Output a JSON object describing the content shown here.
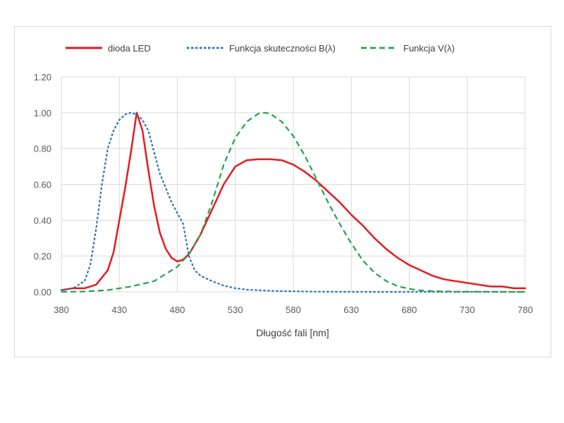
{
  "chart_data": {
    "type": "line",
    "title": "",
    "xlabel": "Długość fali [nm]",
    "ylabel": "",
    "xlim": [
      380,
      780
    ],
    "ylim": [
      0,
      1.2
    ],
    "x_ticks": [
      "380",
      "430",
      "480",
      "530",
      "580",
      "630",
      "680",
      "730",
      "780"
    ],
    "y_ticks": [
      "0.00",
      "0.20",
      "0.40",
      "0.60",
      "0.80",
      "1.00",
      "1.20"
    ],
    "grid": true,
    "legend_position": "top",
    "series": [
      {
        "name": "dioda LED",
        "color": "#e8191f",
        "style": "solid",
        "points": [
          [
            380,
            0.01
          ],
          [
            390,
            0.02
          ],
          [
            400,
            0.02
          ],
          [
            410,
            0.04
          ],
          [
            420,
            0.12
          ],
          [
            425,
            0.22
          ],
          [
            430,
            0.4
          ],
          [
            435,
            0.58
          ],
          [
            440,
            0.78
          ],
          [
            445,
            1.0
          ],
          [
            450,
            0.9
          ],
          [
            455,
            0.68
          ],
          [
            460,
            0.48
          ],
          [
            465,
            0.33
          ],
          [
            470,
            0.24
          ],
          [
            475,
            0.19
          ],
          [
            480,
            0.17
          ],
          [
            485,
            0.18
          ],
          [
            490,
            0.21
          ],
          [
            500,
            0.32
          ],
          [
            510,
            0.46
          ],
          [
            520,
            0.6
          ],
          [
            530,
            0.7
          ],
          [
            540,
            0.735
          ],
          [
            550,
            0.74
          ],
          [
            560,
            0.74
          ],
          [
            570,
            0.735
          ],
          [
            580,
            0.71
          ],
          [
            590,
            0.67
          ],
          [
            600,
            0.62
          ],
          [
            610,
            0.56
          ],
          [
            620,
            0.5
          ],
          [
            630,
            0.43
          ],
          [
            640,
            0.37
          ],
          [
            650,
            0.3
          ],
          [
            660,
            0.24
          ],
          [
            670,
            0.19
          ],
          [
            680,
            0.15
          ],
          [
            690,
            0.12
          ],
          [
            700,
            0.09
          ],
          [
            710,
            0.07
          ],
          [
            720,
            0.06
          ],
          [
            730,
            0.05
          ],
          [
            740,
            0.04
          ],
          [
            750,
            0.03
          ],
          [
            760,
            0.03
          ],
          [
            770,
            0.02
          ],
          [
            780,
            0.02
          ]
        ]
      },
      {
        "name": "Funkcja skuteczności B(λ)",
        "color": "#2e75b6",
        "style": "dotted",
        "points": [
          [
            380,
            0.01
          ],
          [
            390,
            0.02
          ],
          [
            400,
            0.06
          ],
          [
            405,
            0.15
          ],
          [
            410,
            0.35
          ],
          [
            415,
            0.6
          ],
          [
            420,
            0.8
          ],
          [
            425,
            0.9
          ],
          [
            430,
            0.96
          ],
          [
            435,
            0.99
          ],
          [
            440,
            1.0
          ],
          [
            445,
            0.99
          ],
          [
            450,
            0.96
          ],
          [
            455,
            0.9
          ],
          [
            460,
            0.78
          ],
          [
            465,
            0.66
          ],
          [
            470,
            0.58
          ],
          [
            475,
            0.5
          ],
          [
            480,
            0.44
          ],
          [
            485,
            0.38
          ],
          [
            490,
            0.2
          ],
          [
            495,
            0.12
          ],
          [
            500,
            0.09
          ],
          [
            510,
            0.06
          ],
          [
            520,
            0.035
          ],
          [
            530,
            0.02
          ],
          [
            540,
            0.012
          ],
          [
            560,
            0.006
          ],
          [
            580,
            0.003
          ],
          [
            600,
            0.001
          ],
          [
            650,
            0.0
          ],
          [
            780,
            0.0
          ]
        ]
      },
      {
        "name": "Funkcja V(λ)",
        "color": "#21a54a",
        "style": "dashed",
        "points": [
          [
            380,
            0.0
          ],
          [
            400,
            0.002
          ],
          [
            420,
            0.01
          ],
          [
            440,
            0.03
          ],
          [
            460,
            0.06
          ],
          [
            480,
            0.14
          ],
          [
            490,
            0.21
          ],
          [
            500,
            0.32
          ],
          [
            510,
            0.5
          ],
          [
            520,
            0.71
          ],
          [
            530,
            0.86
          ],
          [
            540,
            0.95
          ],
          [
            550,
            0.995
          ],
          [
            555,
            1.0
          ],
          [
            560,
            0.995
          ],
          [
            570,
            0.95
          ],
          [
            580,
            0.87
          ],
          [
            590,
            0.76
          ],
          [
            600,
            0.63
          ],
          [
            610,
            0.5
          ],
          [
            620,
            0.38
          ],
          [
            630,
            0.27
          ],
          [
            640,
            0.175
          ],
          [
            650,
            0.107
          ],
          [
            660,
            0.061
          ],
          [
            670,
            0.032
          ],
          [
            680,
            0.017
          ],
          [
            690,
            0.008
          ],
          [
            700,
            0.004
          ],
          [
            720,
            0.001
          ],
          [
            780,
            0.0
          ]
        ]
      }
    ]
  }
}
